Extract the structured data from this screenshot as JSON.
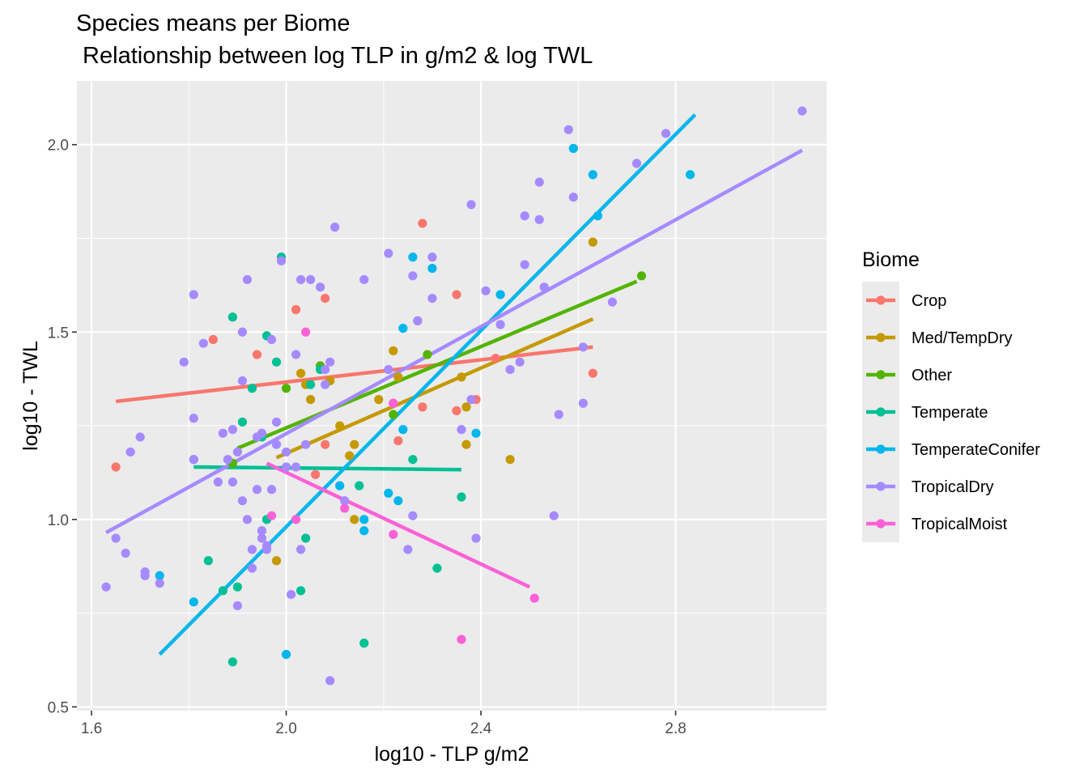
{
  "chart_data": {
    "type": "scatter",
    "title": "Species means per Biome",
    "subtitle": " Relationship between log TLP in g/m2 & log TWL",
    "xlabel": "log10 - TLP g/m2",
    "ylabel": "log10 - TWL",
    "xlim": [
      1.57,
      3.11
    ],
    "ylim": [
      0.49,
      2.17
    ],
    "x_ticks": [
      1.6,
      2.0,
      2.4,
      2.8
    ],
    "x_tick_labels": [
      "1.6",
      "2.0",
      "2.4",
      "2.8"
    ],
    "y_ticks": [
      0.5,
      1.0,
      1.5,
      2.0
    ],
    "y_tick_labels": [
      "0.5",
      "1.0",
      "1.5",
      "2.0"
    ],
    "grid": true,
    "legend": {
      "title": "Biome",
      "placement": "right"
    },
    "series": [
      {
        "name": "Crop",
        "color": "#F8766D",
        "fit": [
          [
            1.65,
            1.315
          ],
          [
            2.63,
            1.46
          ]
        ],
        "points": [
          [
            1.65,
            1.14
          ],
          [
            1.85,
            1.48
          ],
          [
            1.94,
            1.44
          ],
          [
            2.02,
            1.56
          ],
          [
            2.08,
            1.59
          ],
          [
            2.06,
            1.12
          ],
          [
            2.08,
            1.2
          ],
          [
            2.23,
            1.21
          ],
          [
            2.28,
            1.79
          ],
          [
            2.28,
            1.3
          ],
          [
            2.35,
            1.6
          ],
          [
            2.35,
            1.29
          ],
          [
            2.39,
            1.32
          ],
          [
            2.43,
            1.43
          ],
          [
            2.63,
            1.39
          ]
        ]
      },
      {
        "name": "Med/TempDry",
        "color": "#C49A00",
        "fit": [
          [
            1.98,
            1.165
          ],
          [
            2.63,
            1.535
          ]
        ],
        "points": [
          [
            1.98,
            0.89
          ],
          [
            2.03,
            1.39
          ],
          [
            2.04,
            1.36
          ],
          [
            2.05,
            1.32
          ],
          [
            2.09,
            1.37
          ],
          [
            2.11,
            1.25
          ],
          [
            2.13,
            1.17
          ],
          [
            2.14,
            1.2
          ],
          [
            2.14,
            1.0
          ],
          [
            2.19,
            1.32
          ],
          [
            2.22,
            1.45
          ],
          [
            2.23,
            1.38
          ],
          [
            2.27,
            1.53
          ],
          [
            2.36,
            1.38
          ],
          [
            2.37,
            1.3
          ],
          [
            2.37,
            1.2
          ],
          [
            2.46,
            1.16
          ],
          [
            2.63,
            1.74
          ]
        ]
      },
      {
        "name": "Other",
        "color": "#53B400",
        "fit": [
          [
            1.9,
            1.19
          ],
          [
            2.72,
            1.635
          ]
        ],
        "points": [
          [
            1.89,
            1.15
          ],
          [
            2.0,
            1.35
          ],
          [
            2.07,
            1.41
          ],
          [
            2.22,
            1.28
          ],
          [
            2.29,
            1.44
          ],
          [
            2.73,
            1.65
          ]
        ]
      },
      {
        "name": "Temperate",
        "color": "#00C094",
        "fit": [
          [
            1.81,
            1.14
          ],
          [
            2.36,
            1.133
          ]
        ],
        "points": [
          [
            1.81,
            1.16
          ],
          [
            1.84,
            0.89
          ],
          [
            1.87,
            0.81
          ],
          [
            1.89,
            0.62
          ],
          [
            1.89,
            1.54
          ],
          [
            1.9,
            0.82
          ],
          [
            1.91,
            1.26
          ],
          [
            1.93,
            1.35
          ],
          [
            1.95,
            1.22
          ],
          [
            1.96,
            1.0
          ],
          [
            1.96,
            1.49
          ],
          [
            1.98,
            1.42
          ],
          [
            1.99,
            1.7
          ],
          [
            2.03,
            0.81
          ],
          [
            2.04,
            0.95
          ],
          [
            2.05,
            1.36
          ],
          [
            2.07,
            1.4
          ],
          [
            2.15,
            1.09
          ],
          [
            2.16,
            0.67
          ],
          [
            2.26,
            1.16
          ],
          [
            2.31,
            0.87
          ],
          [
            2.36,
            1.06
          ]
        ]
      },
      {
        "name": "TemperateConifer",
        "color": "#00B6EB",
        "fit": [
          [
            1.74,
            0.64
          ],
          [
            2.84,
            2.08
          ]
        ],
        "points": [
          [
            1.74,
            0.85
          ],
          [
            1.81,
            0.78
          ],
          [
            2.0,
            0.64
          ],
          [
            2.11,
            1.09
          ],
          [
            2.16,
            1.0
          ],
          [
            2.16,
            0.97
          ],
          [
            2.21,
            1.07
          ],
          [
            2.23,
            1.05
          ],
          [
            2.24,
            1.51
          ],
          [
            2.24,
            1.24
          ],
          [
            2.26,
            1.7
          ],
          [
            2.3,
            1.67
          ],
          [
            2.39,
            1.23
          ],
          [
            2.44,
            1.6
          ],
          [
            2.59,
            1.99
          ],
          [
            2.63,
            1.92
          ],
          [
            2.64,
            1.81
          ],
          [
            2.83,
            1.92
          ]
        ]
      },
      {
        "name": "TropicalDry",
        "color": "#A58AFF",
        "fit": [
          [
            1.63,
            0.965
          ],
          [
            3.06,
            1.985
          ]
        ],
        "points": [
          [
            1.63,
            0.82
          ],
          [
            1.65,
            0.95
          ],
          [
            1.67,
            0.91
          ],
          [
            1.68,
            1.18
          ],
          [
            1.7,
            1.22
          ],
          [
            1.71,
            0.86
          ],
          [
            1.71,
            0.85
          ],
          [
            1.74,
            0.83
          ],
          [
            1.79,
            1.42
          ],
          [
            1.81,
            1.6
          ],
          [
            1.81,
            1.27
          ],
          [
            1.81,
            1.16
          ],
          [
            1.83,
            1.47
          ],
          [
            1.86,
            1.1
          ],
          [
            1.87,
            1.23
          ],
          [
            1.88,
            1.16
          ],
          [
            1.89,
            1.24
          ],
          [
            1.89,
            1.1
          ],
          [
            1.9,
            1.18
          ],
          [
            1.9,
            0.77
          ],
          [
            1.91,
            1.05
          ],
          [
            1.91,
            1.37
          ],
          [
            1.91,
            1.5
          ],
          [
            1.92,
            1.0
          ],
          [
            1.92,
            1.64
          ],
          [
            1.93,
            0.92
          ],
          [
            1.93,
            0.87
          ],
          [
            1.94,
            1.22
          ],
          [
            1.94,
            1.08
          ],
          [
            1.95,
            0.95
          ],
          [
            1.95,
            1.23
          ],
          [
            1.95,
            0.97
          ],
          [
            1.96,
            0.92
          ],
          [
            1.96,
            0.93
          ],
          [
            1.97,
            1.08
          ],
          [
            1.98,
            1.26
          ],
          [
            1.97,
            1.48
          ],
          [
            1.98,
            1.2
          ],
          [
            1.99,
            1.69
          ],
          [
            2.0,
            1.14
          ],
          [
            2.0,
            1.18
          ],
          [
            2.01,
            0.8
          ],
          [
            2.02,
            1.44
          ],
          [
            2.02,
            1.14
          ],
          [
            2.03,
            1.64
          ],
          [
            2.03,
            0.92
          ],
          [
            2.04,
            1.2
          ],
          [
            2.05,
            1.64
          ],
          [
            2.07,
            1.62
          ],
          [
            2.08,
            1.36
          ],
          [
            2.08,
            1.4
          ],
          [
            2.09,
            0.57
          ],
          [
            2.09,
            1.42
          ],
          [
            2.1,
            1.78
          ],
          [
            2.12,
            1.05
          ],
          [
            2.16,
            1.64
          ],
          [
            2.21,
            1.71
          ],
          [
            2.21,
            1.4
          ],
          [
            2.22,
            1.31
          ],
          [
            2.25,
            0.92
          ],
          [
            2.26,
            1.65
          ],
          [
            2.26,
            1.01
          ],
          [
            2.27,
            1.53
          ],
          [
            2.3,
            1.7
          ],
          [
            2.3,
            1.59
          ],
          [
            2.38,
            1.84
          ],
          [
            2.38,
            1.32
          ],
          [
            2.36,
            1.24
          ],
          [
            2.39,
            0.95
          ],
          [
            2.41,
            1.61
          ],
          [
            2.44,
            1.52
          ],
          [
            2.46,
            1.4
          ],
          [
            2.48,
            1.42
          ],
          [
            2.49,
            1.68
          ],
          [
            2.49,
            1.81
          ],
          [
            2.52,
            1.9
          ],
          [
            2.52,
            1.8
          ],
          [
            2.53,
            1.62
          ],
          [
            2.55,
            1.01
          ],
          [
            2.56,
            1.28
          ],
          [
            2.58,
            2.04
          ],
          [
            2.59,
            1.86
          ],
          [
            2.61,
            1.46
          ],
          [
            2.61,
            1.31
          ],
          [
            2.67,
            1.58
          ],
          [
            2.72,
            1.95
          ],
          [
            2.78,
            2.03
          ],
          [
            3.06,
            2.09
          ]
        ]
      },
      {
        "name": "TropicalMoist",
        "color": "#FB61D7",
        "fit": [
          [
            1.96,
            1.15
          ],
          [
            2.5,
            0.82
          ]
        ],
        "points": [
          [
            1.97,
            1.01
          ],
          [
            2.02,
            1.0
          ],
          [
            2.04,
            1.5
          ],
          [
            2.12,
            1.03
          ],
          [
            2.22,
            0.96
          ],
          [
            2.22,
            1.31
          ],
          [
            2.36,
            0.68
          ],
          [
            2.51,
            0.79
          ]
        ]
      }
    ]
  }
}
